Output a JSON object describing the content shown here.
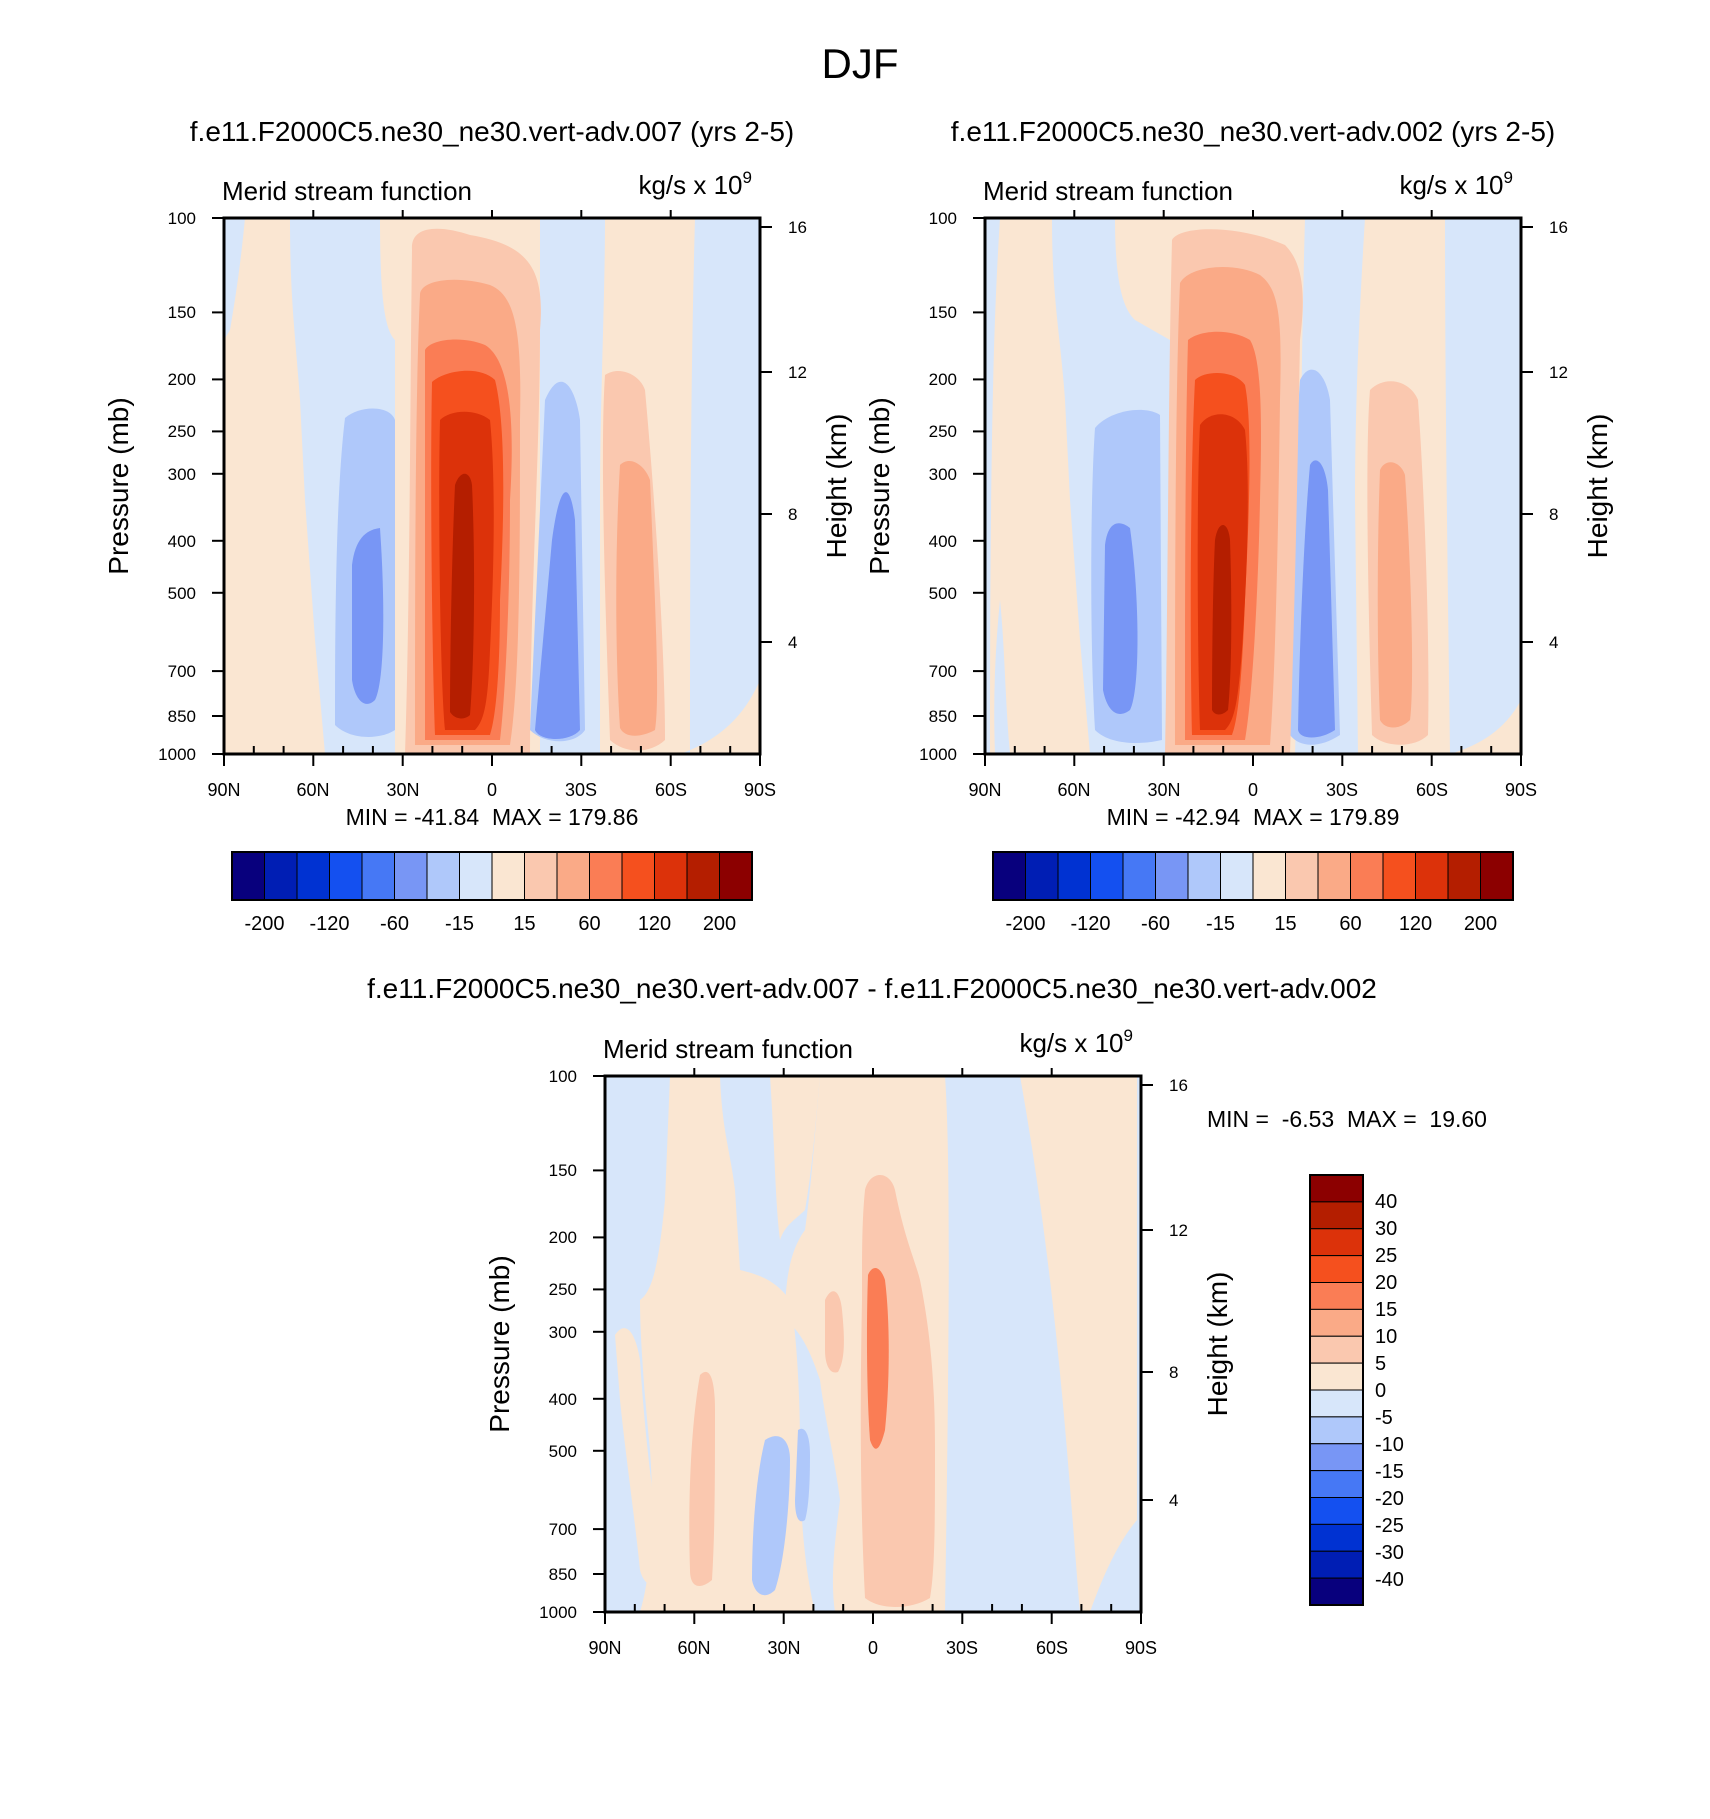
{
  "figure_title": "DJF",
  "colors": {
    "neg": [
      "#08007d",
      "#001eb4",
      "#0032d2",
      "#1450f0",
      "#4678f5",
      "#7896f5",
      "#afc8fa",
      "#d7e6fa"
    ],
    "pos": [
      "#fae6d2",
      "#fac8af",
      "#faaa87",
      "#fa7d55",
      "#f5501e",
      "#dc320a",
      "#b41e00",
      "#8c0000"
    ]
  },
  "chart_data": [
    {
      "type": "heatmap",
      "id": "top-left",
      "title": "f.e11.F2000C5.ne30_ne30.vert-adv.007 (yrs 2-5)",
      "left_label": "Merid stream function",
      "right_label": "kg/s x 10",
      "right_label_exp": "9",
      "ylabel": "Pressure (mb)",
      "ylabel2": "Height (km)",
      "x_ticks": [
        "90N",
        "60N",
        "30N",
        "0",
        "30S",
        "60S",
        "90S"
      ],
      "xlim": [
        90,
        -90
      ],
      "y_ticks": [
        "100",
        "150",
        "200",
        "250",
        "300",
        "400",
        "500",
        "700",
        "850",
        "1000"
      ],
      "ylim": [
        1000,
        100
      ],
      "y2_ticks": [
        "16",
        "12",
        "8",
        "4"
      ],
      "stats": "MIN = -41.84  MAX = 179.86",
      "colorbar_labels": [
        "-200",
        "-120",
        "-60",
        "-15",
        "15",
        "60",
        "120",
        "200"
      ],
      "min": -41.84,
      "max": 179.86
    },
    {
      "type": "heatmap",
      "id": "top-right",
      "title": "f.e11.F2000C5.ne30_ne30.vert-adv.002 (yrs 2-5)",
      "left_label": "Merid stream function",
      "right_label": "kg/s x 10",
      "right_label_exp": "9",
      "ylabel": "Pressure (mb)",
      "ylabel2": "Height (km)",
      "x_ticks": [
        "90N",
        "60N",
        "30N",
        "0",
        "30S",
        "60S",
        "90S"
      ],
      "xlim": [
        90,
        -90
      ],
      "y_ticks": [
        "100",
        "150",
        "200",
        "250",
        "300",
        "400",
        "500",
        "700",
        "850",
        "1000"
      ],
      "ylim": [
        1000,
        100
      ],
      "y2_ticks": [
        "16",
        "12",
        "8",
        "4"
      ],
      "stats": "MIN = -42.94  MAX = 179.89",
      "colorbar_labels": [
        "-200",
        "-120",
        "-60",
        "-15",
        "15",
        "60",
        "120",
        "200"
      ],
      "min": -42.94,
      "max": 179.89
    },
    {
      "type": "heatmap",
      "id": "bottom",
      "title": "f.e11.F2000C5.ne30_ne30.vert-adv.007 - f.e11.F2000C5.ne30_ne30.vert-adv.002",
      "left_label": "Merid stream function",
      "right_label": "kg/s x 10",
      "right_label_exp": "9",
      "ylabel": "Pressure (mb)",
      "ylabel2": "Height (km)",
      "x_ticks": [
        "90N",
        "60N",
        "30N",
        "0",
        "30S",
        "60S",
        "90S"
      ],
      "xlim": [
        90,
        -90
      ],
      "y_ticks": [
        "100",
        "150",
        "200",
        "250",
        "300",
        "400",
        "500",
        "700",
        "850",
        "1000"
      ],
      "ylim": [
        1000,
        100
      ],
      "y2_ticks": [
        "16",
        "12",
        "8",
        "4"
      ],
      "stats": "MIN =  -6.53  MAX =  19.60",
      "colorbar_labels": [
        "40",
        "30",
        "25",
        "20",
        "15",
        "10",
        "5",
        "0",
        "-5",
        "-10",
        "-15",
        "-20",
        "-25",
        "-30",
        "-40"
      ],
      "min": -6.53,
      "max": 19.6
    }
  ]
}
